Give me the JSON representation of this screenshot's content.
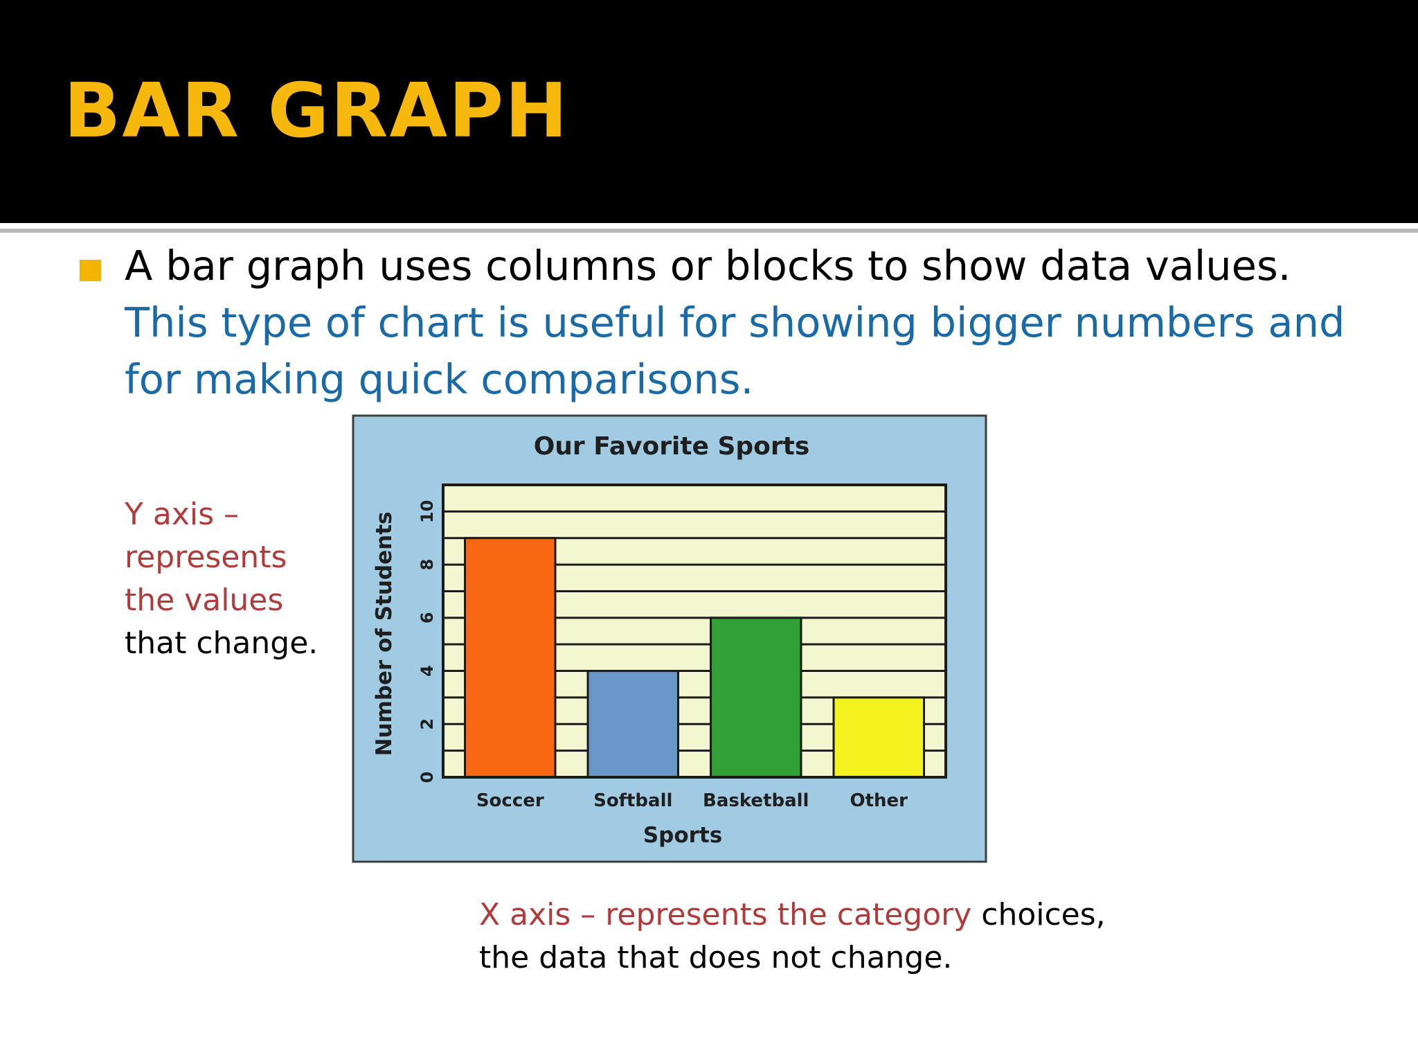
{
  "slide": {
    "title": "BAR GRAPH",
    "bullet": {
      "text_black": "A bar graph uses columns or blocks to show data values.",
      "text_blue": "This type of chart is useful for showing bigger numbers and for making quick comparisons."
    },
    "y_note": {
      "line1": "Y axis –",
      "line2": "represents",
      "line3": "the values",
      "line4": "that change."
    },
    "x_note": {
      "red": "X axis – represents the category",
      "black": "choices,",
      "line2": "the data that does not change."
    }
  },
  "colors": {
    "title": "#f7b80d",
    "bullet_marker": "#f2b400",
    "blue_text": "#1a6aa8",
    "red_text": "#b23a3a",
    "chart_frame": "#a0cbe3",
    "plot_background": "#f2f7cf"
  },
  "chart_data": {
    "type": "bar",
    "title": "Our Favorite Sports",
    "xlabel": "Sports",
    "ylabel": "Number of Students",
    "categories": [
      "Soccer",
      "Softball",
      "Basketball",
      "Other"
    ],
    "values": [
      9,
      4,
      6,
      3
    ],
    "bar_colors": [
      "#f86712",
      "#6897c9",
      "#2f9f36",
      "#f3f31f"
    ],
    "ylim": [
      0,
      11
    ],
    "yticks": [
      0,
      2,
      4,
      6,
      8,
      10
    ],
    "grid_step": 1,
    "grid": true,
    "legend": "none"
  }
}
